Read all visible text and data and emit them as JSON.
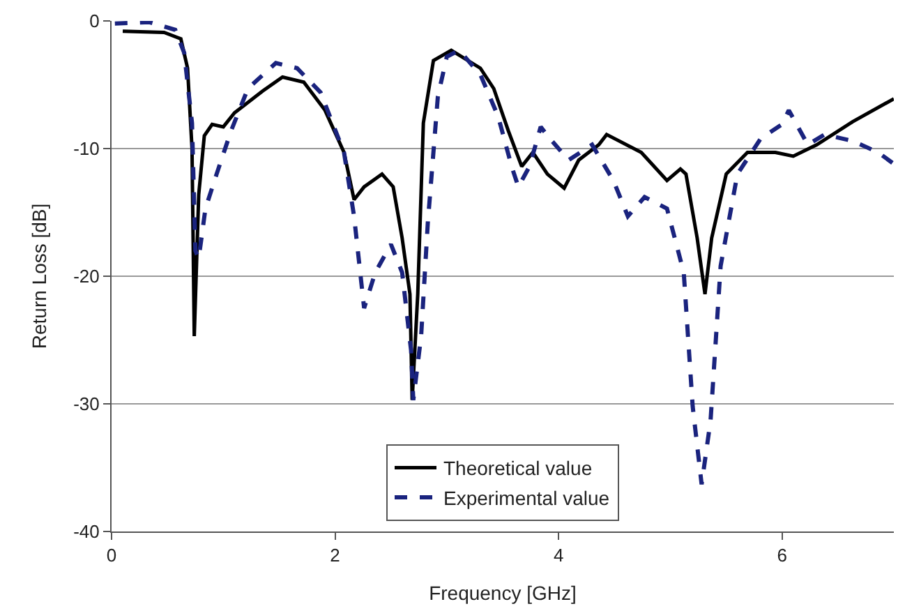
{
  "chart_data": {
    "type": "line",
    "xlabel": "Frequency [GHz]",
    "ylabel": "Return Loss [dB]",
    "xlim": [
      0,
      7
    ],
    "xticks": [
      0,
      2,
      4,
      6
    ],
    "ylim": [
      -40,
      0
    ],
    "yticks": [
      -40,
      -30,
      -20,
      -10,
      0
    ],
    "grid": "y",
    "legend": "bottom",
    "series": [
      {
        "name": "Theoretical value",
        "color": "#000000",
        "line_style": "solid",
        "x": [
          0.1,
          0.47,
          0.62,
          0.68,
          0.72,
          0.74,
          0.78,
          0.83,
          0.9,
          1.0,
          1.1,
          1.35,
          1.53,
          1.72,
          1.91,
          2.08,
          2.17,
          2.26,
          2.42,
          2.52,
          2.6,
          2.67,
          2.69,
          2.74,
          2.79,
          2.88,
          3.04,
          3.3,
          3.42,
          3.55,
          3.67,
          3.77,
          3.9,
          4.05,
          4.18,
          4.36,
          4.43,
          4.74,
          4.97,
          5.09,
          5.14,
          5.24,
          5.31,
          5.37,
          5.5,
          5.69,
          5.94,
          6.1,
          6.31,
          6.63,
          7.0
        ],
        "values": [
          -0.8,
          -0.9,
          -1.4,
          -3.7,
          -10,
          -24.7,
          -13.6,
          -9,
          -8.1,
          -8.3,
          -7.2,
          -5.5,
          -4.4,
          -4.8,
          -7,
          -10.3,
          -14,
          -13,
          -12,
          -13,
          -17,
          -21.4,
          -29.7,
          -21.4,
          -8,
          -3.1,
          -2.3,
          -3.7,
          -5.3,
          -8.6,
          -11.4,
          -10.3,
          -12,
          -13.1,
          -10.9,
          -9.7,
          -8.9,
          -10.3,
          -12.5,
          -11.6,
          -12,
          -17,
          -21.4,
          -17,
          -12,
          -10.3,
          -10.3,
          -10.6,
          -9.7,
          -7.9,
          -6.1
        ]
      },
      {
        "name": "Experimental value",
        "color": "#1a237e",
        "line_style": "dashed",
        "x": [
          0.03,
          0.34,
          0.57,
          0.65,
          0.72,
          0.75,
          0.78,
          0.84,
          0.94,
          1.07,
          1.22,
          1.47,
          1.66,
          1.87,
          2.08,
          2.17,
          2.26,
          2.36,
          2.5,
          2.6,
          2.68,
          2.7,
          2.77,
          2.83,
          2.92,
          3.0,
          3.11,
          3.3,
          3.46,
          3.58,
          3.64,
          3.74,
          3.84,
          3.92,
          4.09,
          4.3,
          4.49,
          4.62,
          4.77,
          4.97,
          5.12,
          5.2,
          5.28,
          5.36,
          5.45,
          5.6,
          5.81,
          6.0,
          6.06,
          6.23,
          6.38,
          6.63,
          6.86,
          7.0
        ],
        "values": [
          -0.2,
          -0.1,
          -0.7,
          -2.5,
          -8,
          -18,
          -18.6,
          -14.7,
          -12,
          -8.6,
          -5.3,
          -3.3,
          -3.7,
          -5.6,
          -10.3,
          -15.3,
          -22.5,
          -19.7,
          -17.5,
          -19.7,
          -25.8,
          -29.7,
          -24.7,
          -15.8,
          -5.9,
          -2.8,
          -2.3,
          -4.2,
          -7.5,
          -11.4,
          -13,
          -11.4,
          -8.3,
          -9.2,
          -10.9,
          -9.7,
          -12.5,
          -15.3,
          -13.8,
          -14.7,
          -19.7,
          -30.2,
          -36.3,
          -31.3,
          -19.2,
          -12,
          -9.2,
          -8.1,
          -7,
          -9.7,
          -8.9,
          -9.4,
          -10.3,
          -11.2
        ]
      }
    ]
  }
}
